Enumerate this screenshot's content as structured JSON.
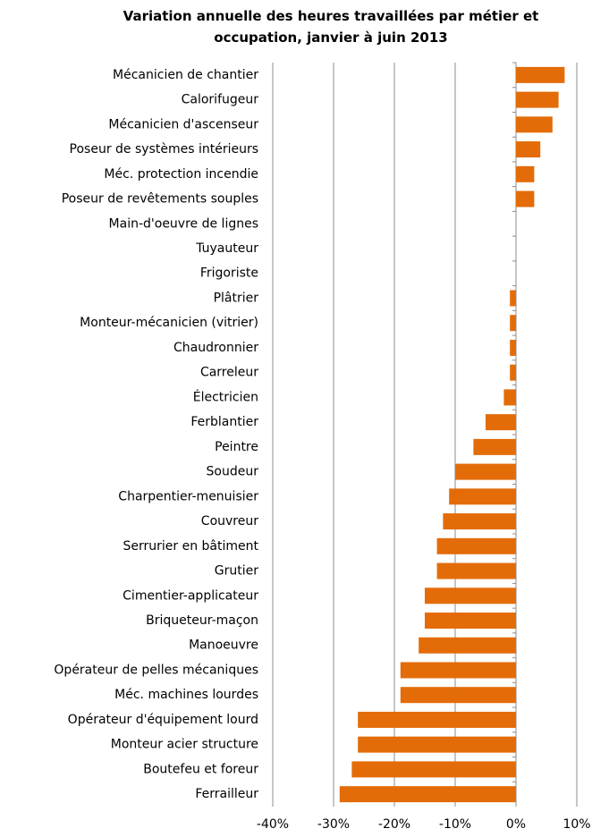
{
  "chart_data": {
    "type": "barh",
    "title": "Variation annuelle des heures travaillées par métier et occupation, janvier à juin 2013",
    "categories": [
      "Mécanicien de chantier",
      "Calorifugeur",
      "Mécanicien d'ascenseur",
      "Poseur de systèmes intérieurs",
      "Méc. protection incendie",
      "Poseur de revêtements souples",
      "Main-d'oeuvre de lignes",
      "Tuyauteur",
      "Frigoriste",
      "Plâtrier",
      "Monteur-mécanicien (vitrier)",
      "Chaudronnier",
      "Carreleur",
      "Électricien",
      "Ferblantier",
      "Peintre",
      "Soudeur",
      "Charpentier-menuisier",
      "Couvreur",
      "Serrurier en bâtiment",
      "Grutier",
      "Cimentier-applicateur",
      "Briqueteur-maçon",
      "Manoeuvre",
      "Opérateur de pelles mécaniques",
      "Méc. machines lourdes",
      "Opérateur d'équipement lourd",
      "Monteur acier structure",
      "Boutefeu et foreur",
      "Ferrailleur"
    ],
    "values": [
      8,
      7,
      6,
      4,
      3,
      3,
      0,
      0,
      0,
      -1,
      -1,
      -1,
      -1,
      -2,
      -5,
      -7,
      -10,
      -11,
      -12,
      -13,
      -13,
      -15,
      -15,
      -16,
      -19,
      -19,
      -26,
      -26,
      -27,
      -29
    ],
    "color": "#e36c09",
    "xlim": [
      -40,
      10
    ],
    "xticks": [
      {
        "value": -40,
        "label": "-40%"
      },
      {
        "value": -30,
        "label": "-30%"
      },
      {
        "value": -20,
        "label": "-20%"
      },
      {
        "value": -10,
        "label": "-10%"
      },
      {
        "value": 0,
        "label": "0%"
      },
      {
        "value": 10,
        "label": "10%"
      }
    ],
    "grid": true
  }
}
